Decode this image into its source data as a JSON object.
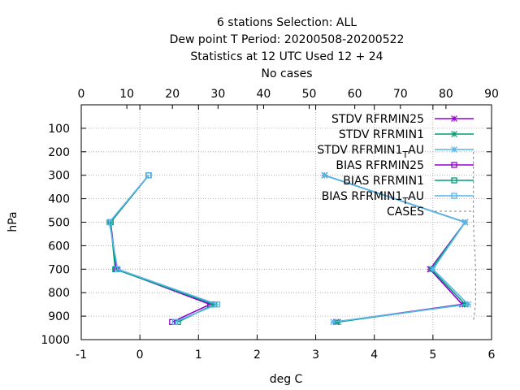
{
  "chart_data": {
    "type": "line",
    "title_lines": [
      "6 stations Selection: ALL",
      "Dew point T  Period: 20200508-20200522",
      "Statistics at 12 UTC  Used  12 + 24",
      "No cases"
    ],
    "xlabel": "deg C",
    "ylabel": "hPa",
    "xlim": [
      -1,
      6
    ],
    "xticks": [
      -1,
      0,
      1,
      2,
      3,
      4,
      5,
      6
    ],
    "ylim": [
      1000,
      0
    ],
    "yticks": [
      100,
      200,
      300,
      400,
      500,
      600,
      700,
      800,
      900,
      1000
    ],
    "x2lim": [
      0,
      90
    ],
    "x2ticks": [
      0,
      10,
      20,
      30,
      40,
      50,
      60,
      70,
      80,
      90
    ],
    "grid": true,
    "legend_position": "top-right",
    "series": [
      {
        "name": "STDV RFRMIN25",
        "color": "#9400d3",
        "marker": "star",
        "points": [
          [
            3.15,
            300
          ],
          [
            5.55,
            500
          ],
          [
            4.95,
            700
          ],
          [
            5.5,
            850
          ],
          [
            3.35,
            925
          ]
        ]
      },
      {
        "name": "STDV RFRMIN1",
        "color": "#009e73",
        "marker": "star",
        "points": [
          [
            3.15,
            300
          ],
          [
            5.55,
            500
          ],
          [
            4.97,
            700
          ],
          [
            5.55,
            850
          ],
          [
            3.38,
            925
          ]
        ]
      },
      {
        "name": "STDV RFRMIN1_TAU",
        "legend_parts": [
          "STDV RFRMIN1",
          "T",
          "AU"
        ],
        "color": "#56b4e9",
        "marker": "star",
        "points": [
          [
            3.15,
            300
          ],
          [
            5.55,
            500
          ],
          [
            5.0,
            700
          ],
          [
            5.6,
            850
          ],
          [
            3.3,
            925
          ]
        ]
      },
      {
        "name": "BIAS RFRMIN25",
        "color": "#9400d3",
        "marker": "square",
        "points": [
          [
            0.15,
            300
          ],
          [
            -0.5,
            500
          ],
          [
            -0.4,
            700
          ],
          [
            1.2,
            850
          ],
          [
            0.55,
            925
          ]
        ]
      },
      {
        "name": "BIAS RFRMIN1",
        "color": "#009e73",
        "marker": "square",
        "points": [
          [
            0.15,
            300
          ],
          [
            -0.5,
            500
          ],
          [
            -0.42,
            700
          ],
          [
            1.27,
            850
          ],
          [
            0.65,
            925
          ]
        ]
      },
      {
        "name": "BIAS RFRMIN1_TAU",
        "legend_parts": [
          "BIAS RFRMIN1",
          "T",
          "AU"
        ],
        "color": "#56b4e9",
        "marker": "square",
        "points": [
          [
            0.15,
            300
          ],
          [
            -0.52,
            500
          ],
          [
            -0.38,
            700
          ],
          [
            1.32,
            850
          ],
          [
            0.6,
            925
          ]
        ]
      },
      {
        "name": "CASES",
        "color": "#999999",
        "marker": "none",
        "dashed": true,
        "axis": "x2",
        "points": [
          [
            86,
            200
          ],
          [
            86,
            500
          ],
          [
            86.5,
            700
          ],
          [
            86.5,
            850
          ],
          [
            86,
            925
          ]
        ]
      }
    ]
  }
}
